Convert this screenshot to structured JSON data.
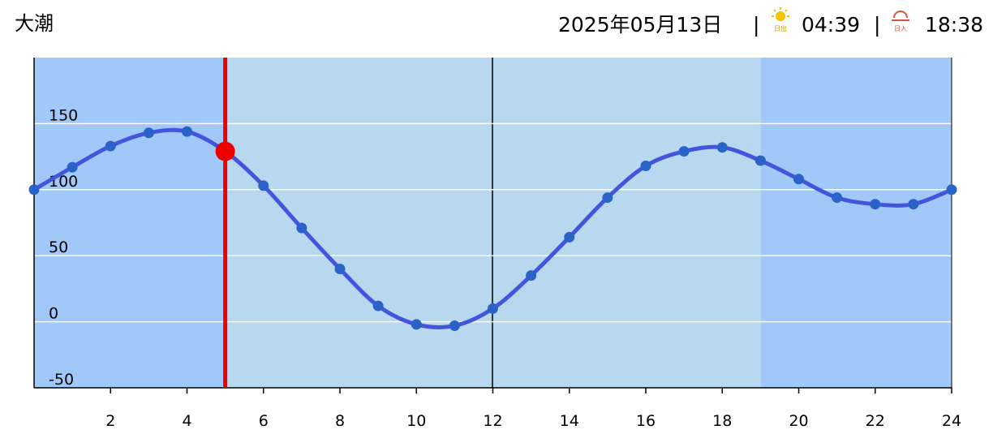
{
  "header": {
    "tide_name": "大潮",
    "date": "2025年05月13日",
    "separator": "|",
    "sunrise_label": "日出",
    "sunrise": "04:39",
    "sunset_label": "日入",
    "sunset": "18:38"
  },
  "chart_data": {
    "type": "line",
    "x": [
      0,
      1,
      2,
      3,
      4,
      5,
      6,
      7,
      8,
      9,
      10,
      11,
      12,
      13,
      14,
      15,
      16,
      17,
      18,
      19,
      20,
      21,
      22,
      23,
      24
    ],
    "series": [
      {
        "color": "#4455dd",
        "values": [
          100,
          117,
          133,
          143,
          144,
          129,
          103,
          71,
          40,
          12,
          -2,
          -3,
          10,
          35,
          64,
          94,
          118,
          129,
          132,
          122,
          108,
          94,
          89,
          89,
          100
        ]
      }
    ],
    "current_marker": {
      "x": 5,
      "y": 129,
      "color": "#ee0000"
    },
    "xlim": [
      0,
      24
    ],
    "xticks": [
      2,
      4,
      6,
      8,
      10,
      12,
      14,
      16,
      18,
      20,
      22,
      24
    ],
    "ylim": [
      -50,
      200
    ],
    "yticks": [
      -50,
      0,
      50,
      100,
      150
    ],
    "grid": true
  }
}
